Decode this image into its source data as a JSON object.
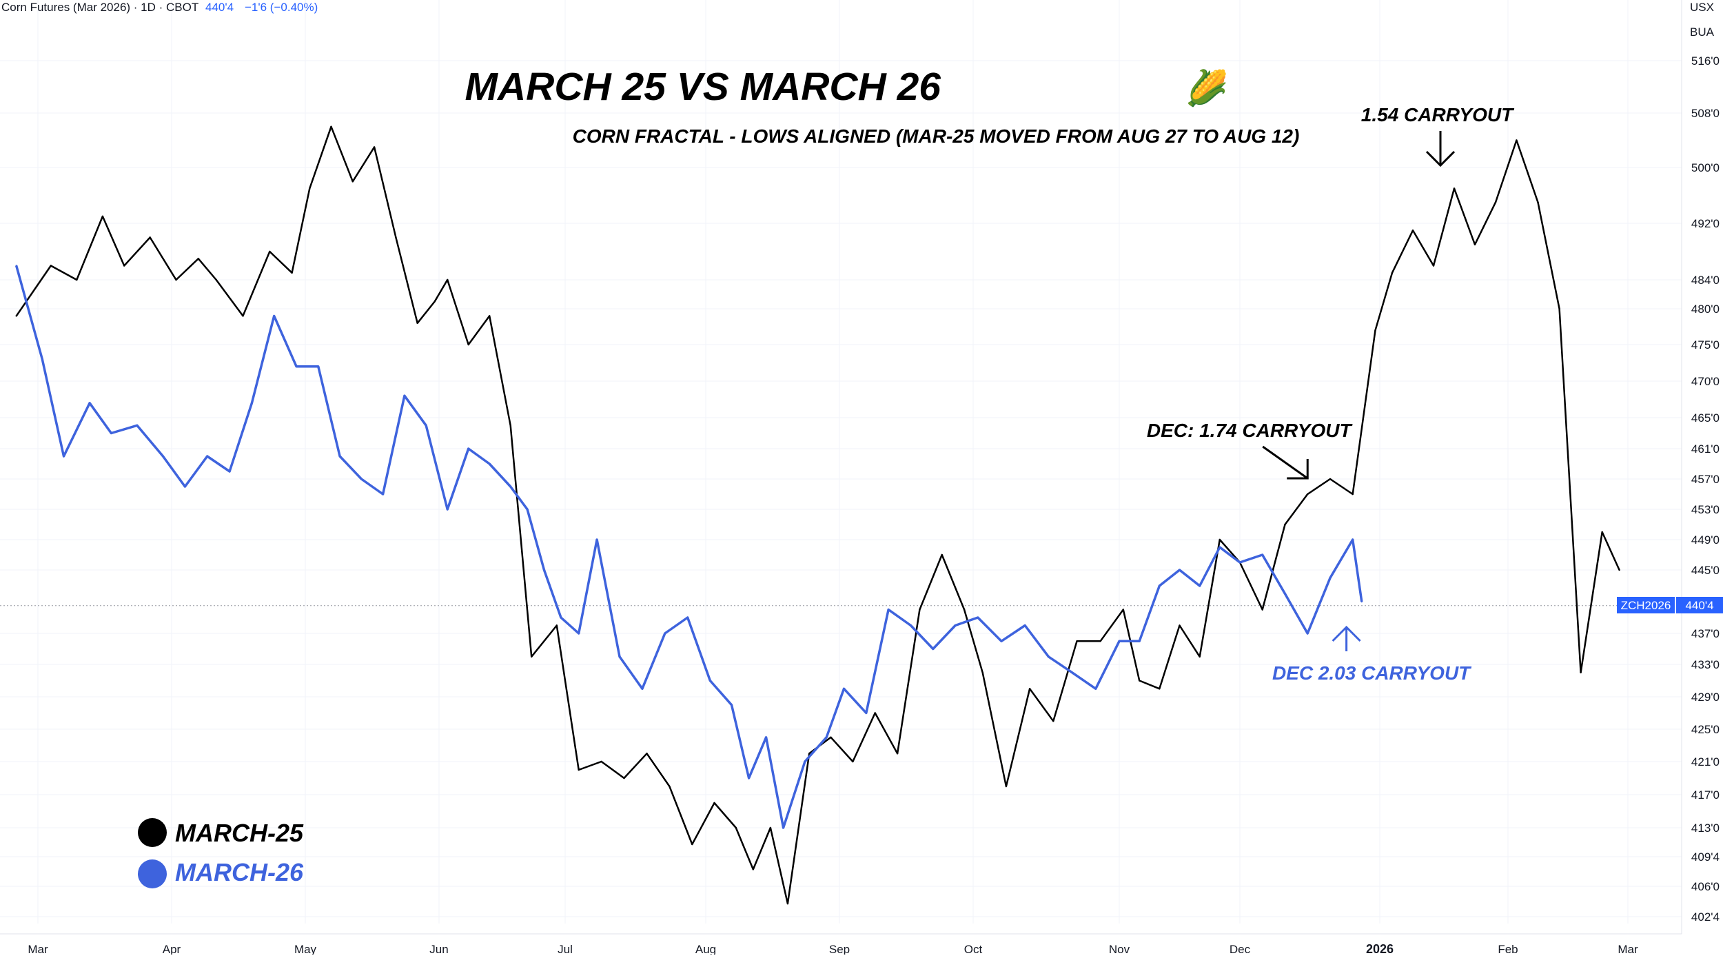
{
  "header": {
    "instrument": "Corn Futures (Mar 2026) · 1D · CBOT",
    "price": "440'4",
    "change": "−1'6 (−0.40%)",
    "currency_top": "USX",
    "currency_bottom": "BUA"
  },
  "price_badge": {
    "symbol": "ZCH2026",
    "value": "440'4"
  },
  "colors": {
    "march25": "#000000",
    "march26": "#3e63dd",
    "grid": "#f0f3fa",
    "last_price_line": "#9598a1",
    "badge": "#2962ff"
  },
  "chart_data": {
    "type": "line",
    "title": "MARCH 25 VS MARCH 26",
    "title_emoji": "🌽",
    "subtitle": "CORN FRACTAL - LOWS ALIGNED (MAR-25 MOVED FROM AUG 27 TO AUG 12)",
    "y_tick_labels": [
      "516'0",
      "508'0",
      "500'0",
      "492'0",
      "484'0",
      "480'0",
      "475'0",
      "470'0",
      "465'0",
      "461'0",
      "457'0",
      "453'0",
      "449'0",
      "445'0",
      "437'0",
      "433'0",
      "429'0",
      "425'0",
      "421'0",
      "417'0",
      "413'0",
      "409'4",
      "406'0",
      "402'4"
    ],
    "y_tick_values": [
      516,
      508,
      500,
      492,
      484,
      480,
      475,
      470,
      465,
      461,
      457,
      453,
      449,
      445,
      437,
      433,
      429,
      425,
      421,
      417,
      413,
      409.5,
      406,
      402.5
    ],
    "x_tick_labels": [
      "Mar",
      "Apr",
      "May",
      "Jun",
      "Jul",
      "Aug",
      "Sep",
      "Oct",
      "Nov",
      "Dec",
      "2026",
      "Feb",
      "Mar"
    ],
    "x_tick_dates": [
      "2025-03-01",
      "2025-04-01",
      "2025-05-01",
      "2025-06-01",
      "2025-07-01",
      "2025-08-01",
      "2025-09-01",
      "2025-10-01",
      "2025-11-01",
      "2025-12-01",
      "2026-01-01",
      "2026-02-01",
      "2026-03-01"
    ],
    "last_price": 440.5,
    "series": [
      {
        "name": "MARCH-25",
        "color": "#000000",
        "x": [
          "2025-02-24",
          "2025-03-04",
          "2025-03-10",
          "2025-03-16",
          "2025-03-21",
          "2025-03-27",
          "2025-04-02",
          "2025-04-07",
          "2025-04-11",
          "2025-04-17",
          "2025-04-23",
          "2025-04-28",
          "2025-05-02",
          "2025-05-07",
          "2025-05-12",
          "2025-05-17",
          "2025-05-22",
          "2025-05-27",
          "2025-05-31",
          "2025-06-03",
          "2025-06-08",
          "2025-06-13",
          "2025-06-18",
          "2025-06-23",
          "2025-06-29",
          "2025-07-04",
          "2025-07-09",
          "2025-07-14",
          "2025-07-19",
          "2025-07-24",
          "2025-07-29",
          "2025-08-03",
          "2025-08-08",
          "2025-08-12",
          "2025-08-16",
          "2025-08-20",
          "2025-08-25",
          "2025-08-30",
          "2025-09-04",
          "2025-09-09",
          "2025-09-14",
          "2025-09-19",
          "2025-09-24",
          "2025-09-29",
          "2025-10-03",
          "2025-10-08",
          "2025-10-13",
          "2025-10-18",
          "2025-10-23",
          "2025-10-28",
          "2025-11-02",
          "2025-11-06",
          "2025-11-11",
          "2025-11-16",
          "2025-11-21",
          "2025-11-26",
          "2025-12-01",
          "2025-12-06",
          "2025-12-11",
          "2025-12-16",
          "2025-12-21",
          "2025-12-26",
          "2025-12-31",
          "2026-01-04",
          "2026-01-09",
          "2026-01-14",
          "2026-01-19",
          "2026-01-24",
          "2026-01-29",
          "2026-02-03",
          "2026-02-08",
          "2026-02-13",
          "2026-02-18",
          "2026-02-23",
          "2026-02-27"
        ],
        "y": [
          479,
          486,
          484,
          493,
          486,
          490,
          484,
          487,
          484,
          479,
          488,
          485,
          497,
          506,
          498,
          503,
          490,
          478,
          481,
          484,
          475,
          479,
          464,
          434,
          438,
          420,
          421,
          419,
          422,
          418,
          411,
          416,
          413,
          408,
          413,
          404,
          422,
          424,
          421,
          427,
          422,
          440,
          447,
          440,
          432,
          418,
          430,
          426,
          436,
          436,
          440,
          431,
          430,
          438,
          434,
          449,
          446,
          440,
          451,
          455,
          457,
          455,
          477,
          485,
          491,
          486,
          497,
          489,
          495,
          504,
          495,
          480,
          432,
          450,
          445
        ]
      },
      {
        "name": "MARCH-26",
        "color": "#3e63dd",
        "x": [
          "2025-02-24",
          "2025-03-02",
          "2025-03-07",
          "2025-03-13",
          "2025-03-18",
          "2025-03-24",
          "2025-03-30",
          "2025-04-04",
          "2025-04-09",
          "2025-04-14",
          "2025-04-19",
          "2025-04-24",
          "2025-04-29",
          "2025-05-04",
          "2025-05-09",
          "2025-05-14",
          "2025-05-19",
          "2025-05-24",
          "2025-05-29",
          "2025-06-03",
          "2025-06-08",
          "2025-06-13",
          "2025-06-18",
          "2025-06-22",
          "2025-06-26",
          "2025-06-30",
          "2025-07-04",
          "2025-07-08",
          "2025-07-13",
          "2025-07-18",
          "2025-07-23",
          "2025-07-28",
          "2025-08-02",
          "2025-08-07",
          "2025-08-11",
          "2025-08-15",
          "2025-08-19",
          "2025-08-24",
          "2025-08-29",
          "2025-09-02",
          "2025-09-07",
          "2025-09-12",
          "2025-09-17",
          "2025-09-22",
          "2025-09-27",
          "2025-10-02",
          "2025-10-07",
          "2025-10-12",
          "2025-10-17",
          "2025-10-22",
          "2025-10-27",
          "2025-11-01",
          "2025-11-06",
          "2025-11-11",
          "2025-11-16",
          "2025-11-21",
          "2025-11-26",
          "2025-12-01",
          "2025-12-06",
          "2025-12-11",
          "2025-12-16",
          "2025-12-21",
          "2025-12-26",
          "2025-12-28"
        ],
        "y": [
          486,
          473,
          460,
          467,
          463,
          464,
          460,
          456,
          460,
          458,
          467,
          479,
          472,
          472,
          460,
          457,
          455,
          468,
          464,
          453,
          461,
          459,
          456,
          453,
          445,
          439,
          437,
          449,
          434,
          430,
          437,
          439,
          431,
          428,
          419,
          424,
          413,
          421,
          424,
          430,
          427,
          440,
          438,
          435,
          438,
          439,
          436,
          438,
          434,
          432,
          430,
          436,
          436,
          443,
          445,
          443,
          448,
          446,
          447,
          442,
          437,
          444,
          449,
          441
        ]
      }
    ],
    "annotations": [
      {
        "text": "1.54 CARRYOUT",
        "series": "MARCH-25",
        "date": "2026-01-19",
        "value": 500,
        "direction": "down"
      },
      {
        "text": "DEC: 1.74 CARRYOUT",
        "series": "MARCH-25",
        "date": "2025-12-16",
        "value": 457,
        "direction": "down-right"
      },
      {
        "text": "DEC 2.03 CARRYOUT",
        "series": "MARCH-26",
        "date": "2025-12-24",
        "value": 436,
        "direction": "up"
      }
    ],
    "legend": {
      "position": "bottom-left",
      "items": [
        "MARCH-25",
        "MARCH-26"
      ]
    },
    "grid": true
  }
}
